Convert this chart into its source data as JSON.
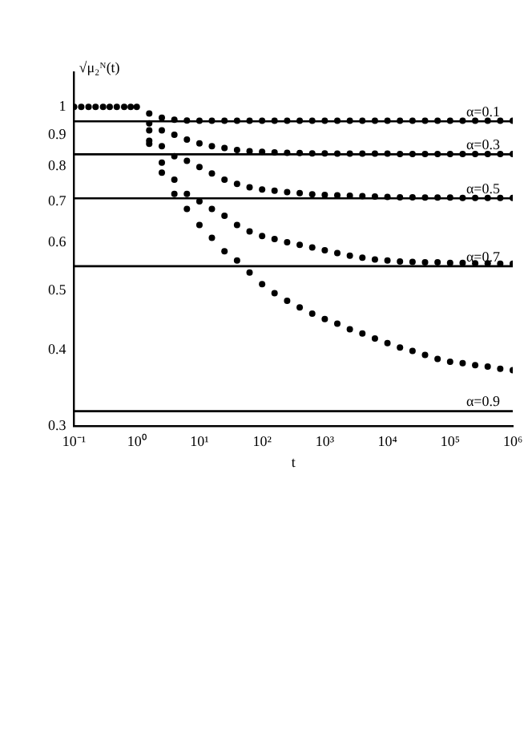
{
  "chart_data": {
    "type": "scatter",
    "xlabel": "t",
    "ylabel": "√μ₂ᴺ(t)",
    "log": "xy",
    "grid": false,
    "legend": false,
    "marker": "circle",
    "xlim": [
      0.1,
      1000000
    ],
    "ylim": [
      0.3,
      1.14
    ],
    "xticks": [
      {
        "value": 0.1,
        "label": "10⁻¹"
      },
      {
        "value": 1,
        "label": "10⁰"
      },
      {
        "value": 10,
        "label": "10¹"
      },
      {
        "value": 100,
        "label": "10²"
      },
      {
        "value": 1000,
        "label": "10³"
      },
      {
        "value": 10000,
        "label": "10⁴"
      },
      {
        "value": 100000,
        "label": "10⁵"
      },
      {
        "value": 1000000,
        "label": "10⁶"
      }
    ],
    "yticks": [
      0.3,
      0.4,
      0.5,
      0.6,
      0.7,
      0.8,
      0.9,
      1
    ],
    "x": [
      1.58,
      2.51,
      3.98,
      6.31,
      10,
      15.8,
      25.1,
      39.8,
      63.1,
      100,
      158,
      251,
      398,
      631,
      1000,
      1585,
      2512,
      3981,
      6310,
      10000,
      15849,
      25119,
      39811,
      63096,
      100000,
      158489,
      251189,
      398107,
      630957,
      1000000
    ],
    "series": [
      {
        "color": "#000000",
        "x": [
          0.1,
          0.13,
          0.17,
          0.22,
          0.29,
          0.37,
          0.48,
          0.63,
          0.8,
          1
        ],
        "values": [
          1,
          1,
          1,
          1,
          1,
          1,
          1,
          1,
          1,
          1
        ]
      },
      {
        "color": "#000000",
        "values": [
          0.975,
          0.96,
          0.953,
          0.95,
          0.949,
          0.949,
          0.949,
          0.949,
          0.949,
          0.949,
          0.949,
          0.949,
          0.949,
          0.949,
          0.949,
          0.949,
          0.949,
          0.949,
          0.949,
          0.949,
          0.949,
          0.949,
          0.949,
          0.949,
          0.949,
          0.949,
          0.949,
          0.949,
          0.949,
          0.949
        ]
      },
      {
        "color": "#000000",
        "values": [
          0.94,
          0.915,
          0.9,
          0.884,
          0.871,
          0.862,
          0.856,
          0.85,
          0.846,
          0.844,
          0.842,
          0.841,
          0.84,
          0.839,
          0.839,
          0.838,
          0.838,
          0.838,
          0.838,
          0.838,
          0.837,
          0.837,
          0.837,
          0.837,
          0.837,
          0.837,
          0.837,
          0.837,
          0.837,
          0.837
        ]
      },
      {
        "color": "#000000",
        "values": [
          0.915,
          0.862,
          0.83,
          0.816,
          0.797,
          0.778,
          0.76,
          0.748,
          0.738,
          0.732,
          0.729,
          0.725,
          0.722,
          0.719,
          0.717,
          0.716,
          0.715,
          0.714,
          0.713,
          0.712,
          0.711,
          0.711,
          0.71,
          0.71,
          0.71,
          0.709,
          0.709,
          0.709,
          0.709,
          0.709
        ]
      },
      {
        "color": "#000000",
        "values": [
          0.88,
          0.81,
          0.76,
          0.72,
          0.7,
          0.68,
          0.663,
          0.64,
          0.625,
          0.614,
          0.607,
          0.6,
          0.594,
          0.588,
          0.582,
          0.576,
          0.57,
          0.566,
          0.562,
          0.56,
          0.558,
          0.557,
          0.556,
          0.556,
          0.555,
          0.555,
          0.554,
          0.554,
          0.553,
          0.553
        ]
      },
      {
        "color": "#000000",
        "values": [
          0.87,
          0.78,
          0.72,
          0.68,
          0.64,
          0.61,
          0.58,
          0.56,
          0.535,
          0.512,
          0.495,
          0.481,
          0.469,
          0.458,
          0.449,
          0.441,
          0.432,
          0.425,
          0.417,
          0.41,
          0.403,
          0.398,
          0.392,
          0.386,
          0.382,
          0.38,
          0.377,
          0.375,
          0.372,
          0.37
        ]
      }
    ],
    "ref_lines": [
      {
        "axis": "y",
        "value": 0.947
      },
      {
        "axis": "y",
        "value": 0.836
      },
      {
        "axis": "y",
        "value": 0.708
      },
      {
        "axis": "y",
        "value": 0.548
      },
      {
        "axis": "y",
        "value": 0.317
      }
    ],
    "annotations": [
      {
        "text": "α=0.1",
        "y": 0.947
      },
      {
        "text": "α=0.3",
        "y": 0.836
      },
      {
        "text": "α=0.5",
        "y": 0.708
      },
      {
        "text": "α=0.7",
        "y": 0.548
      },
      {
        "text": "α=0.9",
        "y": 0.317
      }
    ]
  }
}
